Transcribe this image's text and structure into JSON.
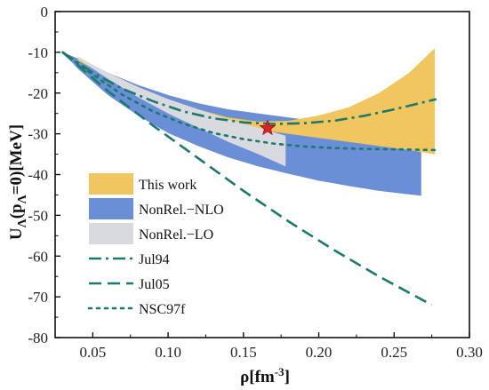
{
  "chart_data": {
    "type": "area",
    "xlabel_main": "ρ[fm",
    "xlabel_sup": "-3",
    "xlabel_end": "]",
    "ylabel_main": "U",
    "ylabel_sub": "Λ",
    "ylabel_mid": "(p",
    "ylabel_sub2": "Λ",
    "ylabel_end": "=0)[MeV]",
    "xlim": [
      0.025,
      0.3
    ],
    "ylim": [
      -80,
      0
    ],
    "xticks": [
      "0.05",
      "0.10",
      "0.15",
      "0.20",
      "0.25",
      "0.30"
    ],
    "xtick_values": [
      0.05,
      0.1,
      0.15,
      0.2,
      0.25,
      0.3
    ],
    "yticks": [
      "0",
      "-10",
      "-20",
      "-30",
      "-40",
      "-50",
      "-60",
      "-70",
      "-80"
    ],
    "ytick_values": [
      0,
      -10,
      -20,
      -30,
      -40,
      -50,
      -60,
      -70,
      -80
    ],
    "legend_position": "lower-left",
    "bands": [
      {
        "name": "NonRel.−NLO",
        "color": "#6a8fd6",
        "x": [
          0.03,
          0.04,
          0.06,
          0.08,
          0.1,
          0.12,
          0.14,
          0.16,
          0.18,
          0.2,
          0.22,
          0.24,
          0.268
        ],
        "upper": [
          -10.0,
          -11.5,
          -15.0,
          -18.0,
          -20.5,
          -22.5,
          -24.0,
          -25.0,
          -26.0,
          -27.0,
          -27.8,
          -28.5,
          -29.2
        ],
        "lower": [
          -10.0,
          -14.0,
          -20.5,
          -25.5,
          -29.8,
          -33.0,
          -35.8,
          -38.0,
          -39.8,
          -41.5,
          -42.8,
          -44.0,
          -45.2
        ]
      },
      {
        "name": "This work",
        "color": "#f2c65e",
        "x": [
          0.04,
          0.06,
          0.08,
          0.1,
          0.12,
          0.14,
          0.16,
          0.18,
          0.2,
          0.22,
          0.24,
          0.26,
          0.277
        ],
        "upper": [
          -11.5,
          -15.0,
          -18.5,
          -21.5,
          -24.0,
          -26.0,
          -27.0,
          -26.8,
          -25.5,
          -23.5,
          -20.0,
          -15.0,
          -9.0
        ],
        "lower": [
          -12.0,
          -16.0,
          -20.0,
          -23.5,
          -26.0,
          -27.8,
          -29.0,
          -30.0,
          -31.0,
          -32.0,
          -33.0,
          -34.0,
          -35.0
        ]
      },
      {
        "name": "NonRel.−LO",
        "color": "#d9dadf",
        "x": [
          0.04,
          0.06,
          0.08,
          0.1,
          0.12,
          0.14,
          0.16,
          0.178
        ],
        "upper": [
          -11.0,
          -15.0,
          -18.5,
          -21.5,
          -24.0,
          -26.5,
          -28.5,
          -30.5
        ],
        "lower": [
          -11.5,
          -16.5,
          -21.0,
          -25.0,
          -28.5,
          -32.0,
          -35.0,
          -38.0
        ]
      }
    ],
    "series": [
      {
        "name": "Jul94",
        "color": "#1a7a6e",
        "dash": "dashdot",
        "x": [
          0.03,
          0.05,
          0.07,
          0.09,
          0.11,
          0.13,
          0.15,
          0.17,
          0.19,
          0.21,
          0.23,
          0.25,
          0.278
        ],
        "y": [
          -10.0,
          -15.0,
          -19.0,
          -22.0,
          -24.5,
          -26.2,
          -27.2,
          -27.6,
          -27.4,
          -26.8,
          -25.6,
          -24.0,
          -21.5
        ]
      },
      {
        "name": "Jul05",
        "color": "#1a7a6e",
        "dash": "dash",
        "x": [
          0.03,
          0.06,
          0.09,
          0.12,
          0.15,
          0.18,
          0.21,
          0.24,
          0.275
        ],
        "y": [
          -10.0,
          -19.5,
          -28.0,
          -36.0,
          -44.0,
          -51.5,
          -58.5,
          -65.0,
          -72.0
        ]
      },
      {
        "name": "NSC97f",
        "color": "#1a7a6e",
        "dash": "dot",
        "x": [
          0.03,
          0.05,
          0.07,
          0.09,
          0.11,
          0.13,
          0.15,
          0.17,
          0.19,
          0.21,
          0.23,
          0.25,
          0.28
        ],
        "y": [
          -10.0,
          -15.5,
          -20.5,
          -24.5,
          -27.5,
          -29.8,
          -31.3,
          -32.4,
          -33.1,
          -33.5,
          -33.7,
          -33.8,
          -34.0
        ]
      }
    ],
    "marker": {
      "shape": "star",
      "color": "#d8232a",
      "x": 0.166,
      "y": -28.6
    }
  }
}
